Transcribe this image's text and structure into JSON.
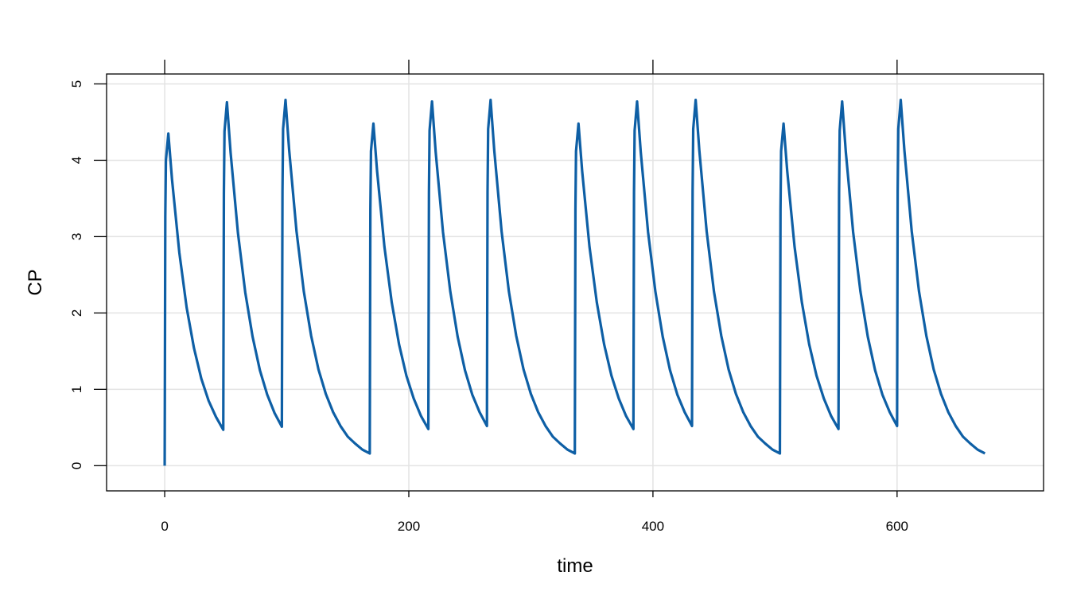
{
  "chart_data": {
    "type": "line",
    "xlabel": "time",
    "ylabel": "CP",
    "x": [
      0,
      0.5,
      1,
      3,
      6,
      12,
      18,
      24,
      30,
      36,
      42,
      48,
      48.5,
      49,
      51,
      54,
      60,
      66,
      72,
      78,
      84,
      90,
      96,
      96.5,
      97,
      99,
      102,
      108,
      114,
      120,
      126,
      132,
      138,
      144,
      150,
      156,
      162,
      168,
      168.5,
      169,
      171,
      174,
      180,
      186,
      192,
      198,
      204,
      210,
      216,
      216.5,
      217,
      219,
      222,
      228,
      234,
      240,
      246,
      252,
      258,
      264,
      264.5,
      265,
      267,
      270,
      276,
      282,
      288,
      294,
      300,
      306,
      312,
      318,
      324,
      330,
      336,
      336.5,
      337,
      339,
      342,
      348,
      354,
      360,
      366,
      372,
      378,
      384,
      384.5,
      385,
      387,
      390,
      396,
      402,
      408,
      414,
      420,
      426,
      432,
      432.5,
      433,
      435,
      438,
      444,
      450,
      456,
      462,
      468,
      474,
      480,
      486,
      492,
      498,
      504,
      504.5,
      505,
      507,
      510,
      516,
      522,
      528,
      534,
      540,
      546,
      552,
      552.5,
      553,
      555,
      558,
      564,
      570,
      576,
      582,
      588,
      594,
      600,
      600.5,
      601,
      603,
      606,
      612,
      618,
      624,
      630,
      636,
      642,
      648,
      654,
      660,
      666,
      672
    ],
    "series": [
      {
        "color": "#0e5fa5",
        "values": [
          0,
          3.26,
          4.0,
          4.35,
          3.75,
          2.79,
          2.07,
          1.54,
          1.14,
          0.85,
          0.64,
          0.47,
          3.57,
          4.38,
          4.76,
          4.1,
          3.05,
          2.27,
          1.69,
          1.25,
          0.93,
          0.69,
          0.51,
          3.59,
          4.41,
          4.79,
          4.13,
          3.07,
          2.28,
          1.7,
          1.26,
          0.94,
          0.7,
          0.52,
          0.38,
          0.29,
          0.21,
          0.16,
          3.36,
          4.12,
          4.48,
          3.86,
          2.87,
          2.14,
          1.59,
          1.18,
          0.88,
          0.65,
          0.48,
          3.58,
          4.39,
          4.77,
          4.11,
          3.06,
          2.28,
          1.69,
          1.25,
          0.93,
          0.7,
          0.52,
          3.59,
          4.41,
          4.79,
          4.13,
          3.07,
          2.28,
          1.7,
          1.26,
          0.94,
          0.7,
          0.52,
          0.38,
          0.29,
          0.21,
          0.16,
          3.36,
          4.12,
          4.48,
          3.86,
          2.87,
          2.14,
          1.59,
          1.18,
          0.88,
          0.65,
          0.48,
          3.58,
          4.39,
          4.77,
          4.11,
          3.06,
          2.28,
          1.69,
          1.25,
          0.93,
          0.7,
          0.52,
          3.59,
          4.41,
          4.79,
          4.13,
          3.07,
          2.28,
          1.7,
          1.26,
          0.94,
          0.7,
          0.52,
          0.38,
          0.29,
          0.21,
          0.16,
          3.36,
          4.12,
          4.48,
          3.86,
          2.87,
          2.14,
          1.59,
          1.18,
          0.88,
          0.65,
          0.48,
          3.58,
          4.39,
          4.77,
          4.11,
          3.06,
          2.28,
          1.69,
          1.25,
          0.93,
          0.7,
          0.52,
          3.59,
          4.41,
          4.79,
          4.13,
          3.07,
          2.28,
          1.7,
          1.26,
          0.94,
          0.7,
          0.52,
          0.38,
          0.29,
          0.21,
          0.16
        ]
      }
    ],
    "xlim": [
      -47.6,
      720
    ],
    "ylim": [
      -0.33,
      5.13
    ],
    "xticks": [
      0,
      200,
      400,
      600
    ],
    "yticks": [
      0,
      1,
      2,
      3,
      4,
      5
    ],
    "grid": true
  }
}
